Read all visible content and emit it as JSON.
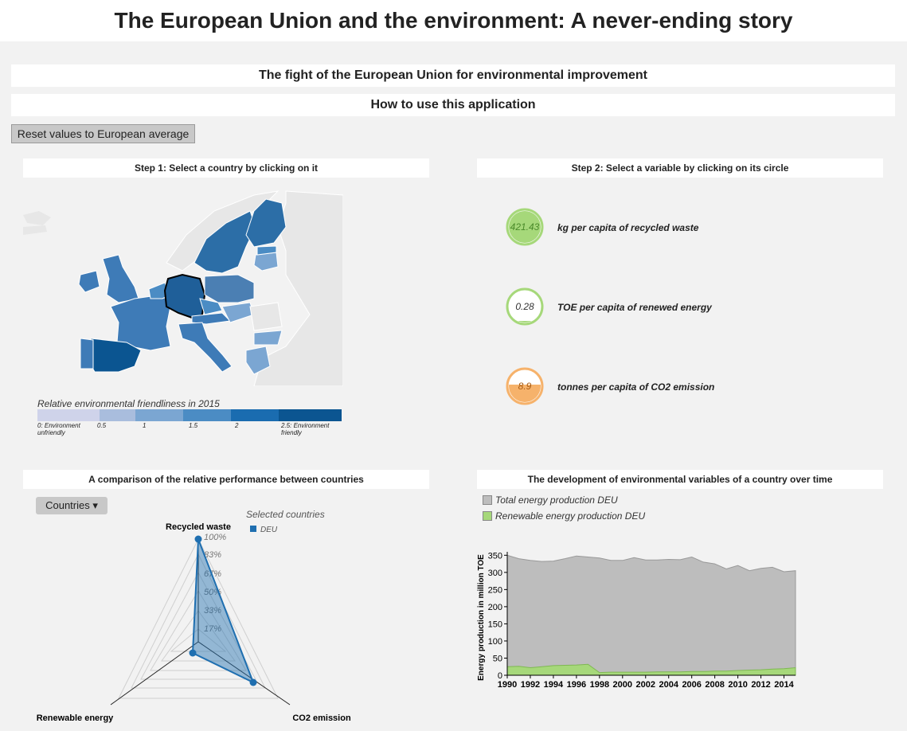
{
  "header": {
    "title": "The European Union and the environment: A never-ending story"
  },
  "banners": {
    "fight": "The fight of the European Union for environmental improvement",
    "howto": "How to use this application"
  },
  "reset_button": "Reset values to European average",
  "step1": {
    "title": "Step 1: Select a country by clicking on it"
  },
  "step2": {
    "title": "Step 2: Select a variable by clicking on its circle"
  },
  "map_legend": {
    "title": "Relative environmental friendliness in 2015",
    "colors": [
      "#cfd3ea",
      "#a9bddd",
      "#7ba6d2",
      "#4b8cc4",
      "#1a6cb0",
      "#0b5591"
    ],
    "labels": [
      "0: Environment unfriendly",
      "0.5",
      "1",
      "1.5",
      "2",
      "2.5: Environment friendly"
    ]
  },
  "variables": [
    {
      "value": "421.43",
      "label": "kg per capita of recycled waste",
      "color": "#a6d87a",
      "fill_level": 1.0
    },
    {
      "value": "0.28",
      "label": "TOE per capita of renewed energy",
      "color": "#a6d87a",
      "fill_level": 0.05
    },
    {
      "value": "8.9",
      "label": "tonnes per capita of CO2 emission",
      "color": "#f6b26b",
      "fill_level": 0.55
    }
  ],
  "comparison": {
    "title": "A comparison of the relative performance between countries",
    "dropdown": "Countries",
    "legend_title": "Selected countries",
    "legend_items": [
      {
        "label": "DEU",
        "color": "#1f6fb0"
      }
    ]
  },
  "radar": {
    "axes": [
      "Recycled waste",
      "Renewable energy",
      "CO2 emission"
    ],
    "levels": [
      "100%",
      "83%",
      "67%",
      "50%",
      "33%",
      "17%"
    ]
  },
  "timeseries": {
    "title": "The development of environmental variables of a country over time",
    "legend": [
      {
        "label": "Total energy production DEU",
        "color": "#bdbdbd"
      },
      {
        "label": "Renewable energy production DEU",
        "color": "#a6d87a"
      }
    ]
  },
  "chart_data": {
    "type": "area",
    "ylabel": "Energy production in million TOE",
    "xlabel": "",
    "ylim": [
      0,
      360
    ],
    "yticks": [
      0,
      50,
      100,
      150,
      200,
      250,
      300,
      350
    ],
    "xticks": [
      1990,
      1992,
      1994,
      1996,
      1998,
      2000,
      2002,
      2004,
      2006,
      2008,
      2010,
      2012,
      2014
    ],
    "x": [
      1990,
      1991,
      1992,
      1993,
      1994,
      1995,
      1996,
      1997,
      1998,
      1999,
      2000,
      2001,
      2002,
      2003,
      2004,
      2005,
      2006,
      2007,
      2008,
      2009,
      2010,
      2011,
      2012,
      2013,
      2014,
      2015
    ],
    "series": [
      {
        "name": "Total energy production DEU",
        "values": [
          350,
          340,
          335,
          332,
          333,
          340,
          348,
          345,
          342,
          335,
          335,
          343,
          336,
          336,
          338,
          337,
          345,
          330,
          325,
          310,
          320,
          305,
          312,
          315,
          302,
          305
        ]
      },
      {
        "name": "Renewable energy production DEU",
        "values": [
          25,
          26,
          22,
          25,
          28,
          29,
          30,
          32,
          8,
          9,
          9,
          9,
          9,
          10,
          10,
          10,
          11,
          11,
          12,
          12,
          14,
          15,
          16,
          18,
          19,
          22
        ]
      }
    ]
  }
}
